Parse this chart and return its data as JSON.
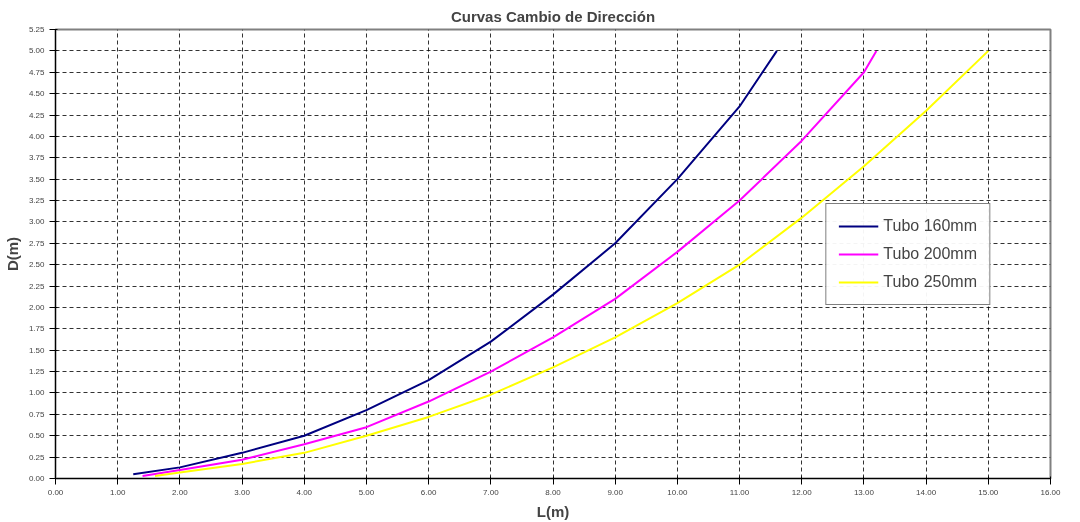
{
  "chart_data": {
    "type": "line",
    "title": "Curvas Cambio de Dirección",
    "xlabel": "L(m)",
    "ylabel": "D(m)",
    "xlim": [
      0,
      16
    ],
    "ylim": [
      0,
      5.25
    ],
    "xticks": [
      {
        "value": 0,
        "label": "0.00"
      },
      {
        "value": 1,
        "label": "1.00"
      },
      {
        "value": 2,
        "label": "2.00"
      },
      {
        "value": 3,
        "label": "3.00"
      },
      {
        "value": 4,
        "label": "4.00"
      },
      {
        "value": 5,
        "label": "5.00"
      },
      {
        "value": 6,
        "label": "6.00"
      },
      {
        "value": 7,
        "label": "7.00"
      },
      {
        "value": 8,
        "label": "8.00"
      },
      {
        "value": 9,
        "label": "9.00"
      },
      {
        "value": 10,
        "label": "10.00"
      },
      {
        "value": 11,
        "label": "11.00"
      },
      {
        "value": 12,
        "label": "12.00"
      },
      {
        "value": 13,
        "label": "13.00"
      },
      {
        "value": 14,
        "label": "14.00"
      },
      {
        "value": 15,
        "label": "15.00"
      },
      {
        "value": 16,
        "label": "16.00"
      }
    ],
    "yticks": [
      {
        "value": 0,
        "label": "0.00"
      },
      {
        "value": 0.25,
        "label": "0.25"
      },
      {
        "value": 0.5,
        "label": "0.50"
      },
      {
        "value": 0.75,
        "label": "0.75"
      },
      {
        "value": 1,
        "label": "1.00"
      },
      {
        "value": 1.25,
        "label": "1.25"
      },
      {
        "value": 1.5,
        "label": "1.50"
      },
      {
        "value": 1.75,
        "label": "1.75"
      },
      {
        "value": 2,
        "label": "2.00"
      },
      {
        "value": 2.25,
        "label": "2.25"
      },
      {
        "value": 2.5,
        "label": "2.50"
      },
      {
        "value": 2.75,
        "label": "2.75"
      },
      {
        "value": 3,
        "label": "3.00"
      },
      {
        "value": 3.25,
        "label": "3.25"
      },
      {
        "value": 3.5,
        "label": "3.50"
      },
      {
        "value": 3.75,
        "label": "3.75"
      },
      {
        "value": 4,
        "label": "4.00"
      },
      {
        "value": 4.25,
        "label": "4.25"
      },
      {
        "value": 4.5,
        "label": "4.50"
      },
      {
        "value": 4.75,
        "label": "4.75"
      },
      {
        "value": 5,
        "label": "5.00"
      },
      {
        "value": 5.25,
        "label": "5.25"
      }
    ],
    "grid": true,
    "legend": "right",
    "marker": "none",
    "line_style": "solid",
    "series": [
      {
        "name": "Tubo 160mm",
        "color": "#000080",
        "x": [
          1.25,
          2,
          3,
          4,
          5,
          6,
          7,
          8,
          9,
          10,
          11,
          11.6
        ],
        "values": [
          0.05,
          0.13,
          0.3,
          0.5,
          0.8,
          1.15,
          1.6,
          2.15,
          2.75,
          3.5,
          4.35,
          5.0
        ]
      },
      {
        "name": "Tubo 200mm",
        "color": "#ff00ff",
        "x": [
          1.4,
          2,
          3,
          4,
          5,
          6,
          7,
          8,
          9,
          10,
          11,
          12,
          13,
          13.2
        ],
        "values": [
          0.03,
          0.1,
          0.22,
          0.4,
          0.6,
          0.9,
          1.25,
          1.65,
          2.1,
          2.65,
          3.25,
          3.95,
          4.75,
          5.0
        ]
      },
      {
        "name": "Tubo 250mm",
        "color": "#ffff00",
        "x": [
          1.6,
          2,
          3,
          4,
          5,
          6,
          7,
          8,
          9,
          10,
          11,
          12,
          13,
          14,
          15
        ],
        "values": [
          0.03,
          0.07,
          0.17,
          0.3,
          0.5,
          0.72,
          0.98,
          1.3,
          1.65,
          2.05,
          2.5,
          3.05,
          3.65,
          4.3,
          5.0
        ]
      }
    ]
  }
}
